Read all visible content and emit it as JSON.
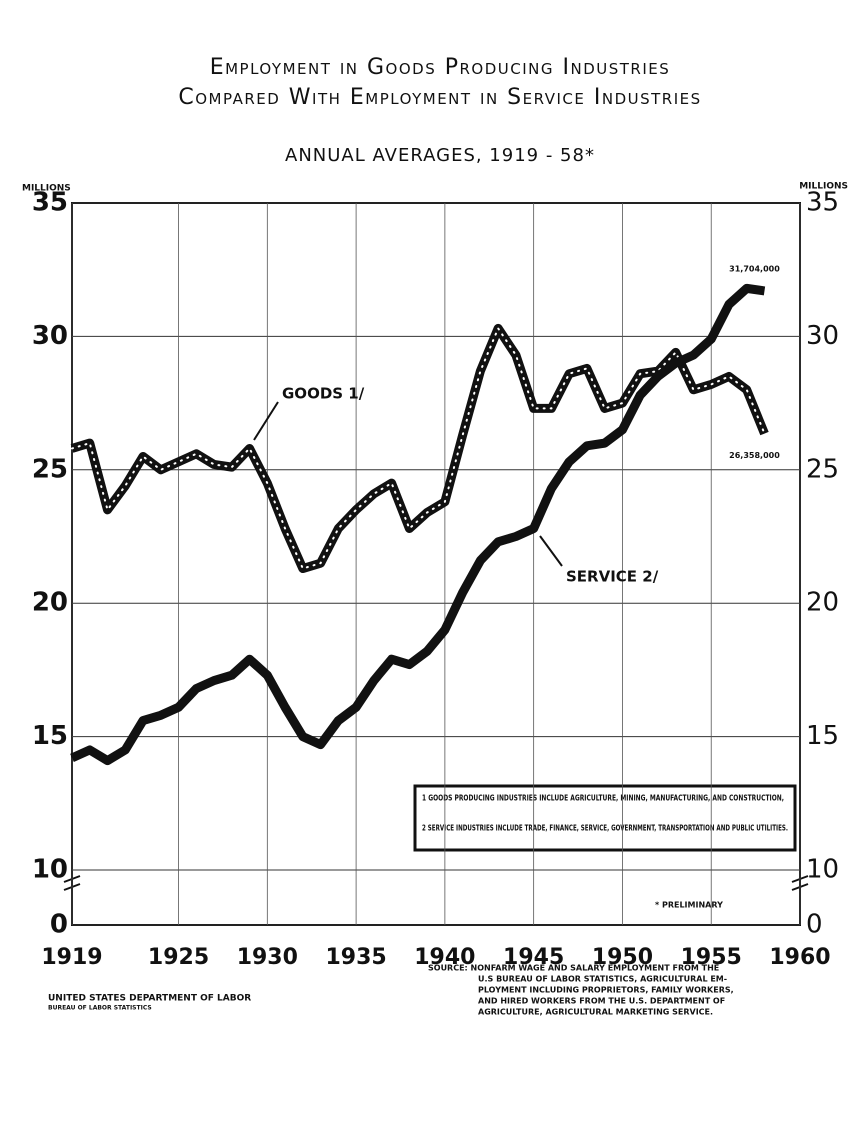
{
  "chart_data": {
    "type": "line",
    "title": "Employment in Goods Producing Industries",
    "title2": "Compared With Employment in Service Industries",
    "subtitle": "ANNUAL AVERAGES, 1919 - 58*",
    "ylabel": "MILLIONS",
    "y2label": "MILLIONS",
    "x": [
      1919,
      1920,
      1921,
      1922,
      1923,
      1924,
      1925,
      1926,
      1927,
      1928,
      1929,
      1930,
      1931,
      1932,
      1933,
      1934,
      1935,
      1936,
      1937,
      1938,
      1939,
      1940,
      1941,
      1942,
      1943,
      1944,
      1945,
      1946,
      1947,
      1948,
      1949,
      1950,
      1951,
      1952,
      1953,
      1954,
      1955,
      1956,
      1957,
      1958
    ],
    "series": [
      {
        "name": "GOODS 1/",
        "color": "#111111",
        "style": "dotted",
        "values": [
          25.8,
          26.0,
          23.5,
          24.4,
          25.5,
          25.0,
          25.3,
          25.6,
          25.2,
          25.1,
          25.8,
          24.5,
          22.8,
          21.3,
          21.5,
          22.8,
          23.5,
          24.1,
          24.5,
          22.8,
          23.4,
          23.8,
          26.3,
          28.7,
          30.3,
          29.3,
          27.3,
          27.3,
          28.6,
          28.8,
          27.3,
          27.5,
          28.6,
          28.7,
          29.4,
          28.0,
          28.2,
          28.5,
          28.0,
          26.358
        ],
        "end_label": "26,358,000"
      },
      {
        "name": "SERVICE 2/",
        "color": "#111111",
        "style": "solid",
        "values": [
          14.2,
          14.5,
          14.1,
          14.5,
          15.6,
          15.8,
          16.1,
          16.8,
          17.1,
          17.3,
          17.9,
          17.3,
          16.1,
          15.0,
          14.7,
          15.6,
          16.1,
          17.1,
          17.9,
          17.7,
          18.2,
          19.0,
          20.4,
          21.6,
          22.3,
          22.5,
          22.8,
          24.3,
          25.3,
          25.9,
          26.0,
          26.5,
          27.8,
          28.5,
          29.0,
          29.3,
          29.9,
          31.2,
          31.8,
          31.704
        ],
        "end_label": "31,704,000"
      }
    ],
    "xlim": [
      1919,
      1960
    ],
    "xticks": [
      1919,
      1925,
      1930,
      1935,
      1940,
      1945,
      1950,
      1955,
      1960
    ],
    "ylim": [
      0,
      35
    ],
    "yticks": [
      0,
      10,
      15,
      20,
      25,
      30,
      35
    ],
    "axis_break": [
      0,
      10
    ],
    "grid": true,
    "footnotes": [
      "1 GOODS PRODUCING INDUSTRIES INCLUDE AGRICULTURE, MINING, MANUFACTURING, AND CONSTRUCTION,",
      "2 SERVICE INDUSTRIES INCLUDE TRADE, FINANCE, SERVICE, GOVERNMENT, TRANSPORTATION AND PUBLIC UTILITIES."
    ],
    "note": "* PRELIMINARY",
    "source": [
      "SOURCE: NONFARM WAGE AND SALARY EMPLOYMENT FROM THE",
      "U.S BUREAU OF LABOR STATISTICS, AGRICULTURAL EM-",
      "PLOYMENT INCLUDING PROPRIETORS, FAMILY WORKERS,",
      "AND HIRED WORKERS FROM THE U.S. DEPARTMENT OF",
      "AGRICULTURE, AGRICULTURAL MARKETING SERVICE."
    ],
    "agency": "UNITED STATES DEPARTMENT OF LABOR",
    "bureau": "BUREAU OF LABOR STATISTICS"
  }
}
